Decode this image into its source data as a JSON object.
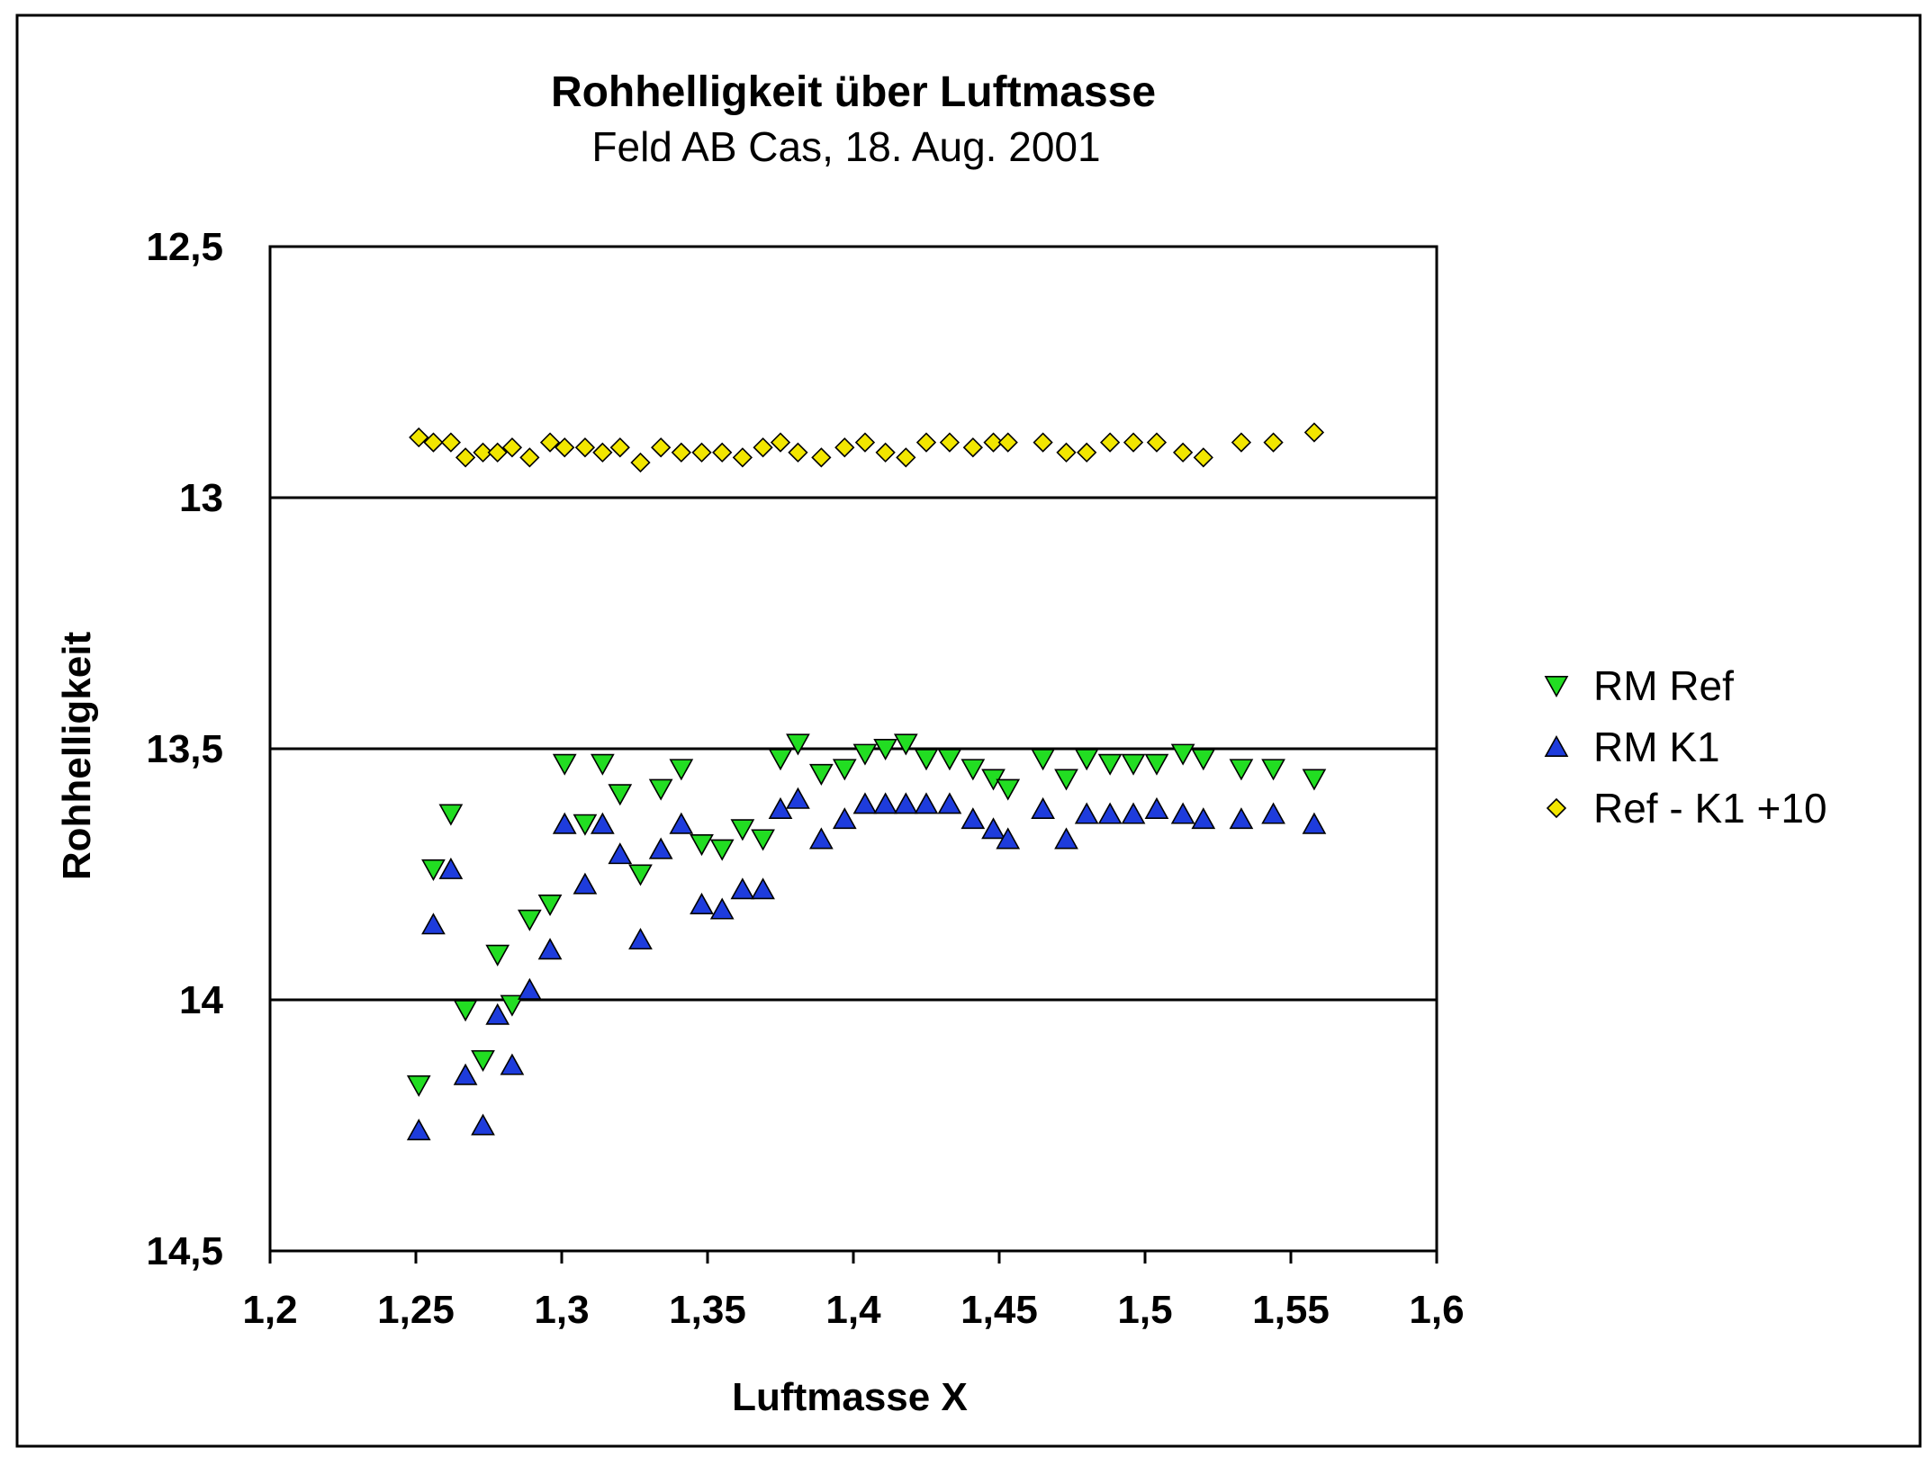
{
  "chart_data": {
    "type": "scatter",
    "title": "Rohhelligkeit über Luftmasse",
    "subtitle": "Feld AB Cas, 18. Aug. 2001",
    "xlabel": "Luftmasse X",
    "ylabel": "Rohhelligkeit",
    "xlim": [
      1.2,
      1.6
    ],
    "ylim": [
      12.5,
      14.5
    ],
    "y_reversed": true,
    "x_ticks": [
      "1,2",
      "1,25",
      "1,3",
      "1,35",
      "1,4",
      "1,45",
      "1,5",
      "1,55",
      "1,6"
    ],
    "x_tick_values": [
      1.2,
      1.25,
      1.3,
      1.35,
      1.4,
      1.45,
      1.5,
      1.55,
      1.6
    ],
    "y_ticks": [
      "12,5",
      "13",
      "13,5",
      "14",
      "14,5"
    ],
    "y_tick_values": [
      12.5,
      13.0,
      13.5,
      14.0,
      14.5
    ],
    "y_gridlines": [
      13.0,
      13.5,
      14.0
    ],
    "legend_position": "right",
    "series": [
      {
        "name": "RM Ref",
        "marker": "triangle-down",
        "color": "#22dd22",
        "points": [
          [
            1.251,
            14.17
          ],
          [
            1.256,
            13.74
          ],
          [
            1.262,
            13.63
          ],
          [
            1.267,
            14.02
          ],
          [
            1.273,
            14.12
          ],
          [
            1.278,
            13.91
          ],
          [
            1.283,
            14.01
          ],
          [
            1.289,
            13.84
          ],
          [
            1.296,
            13.81
          ],
          [
            1.301,
            13.53
          ],
          [
            1.308,
            13.65
          ],
          [
            1.314,
            13.53
          ],
          [
            1.32,
            13.59
          ],
          [
            1.327,
            13.75
          ],
          [
            1.334,
            13.58
          ],
          [
            1.341,
            13.54
          ],
          [
            1.348,
            13.69
          ],
          [
            1.355,
            13.7
          ],
          [
            1.362,
            13.66
          ],
          [
            1.369,
            13.68
          ],
          [
            1.375,
            13.52
          ],
          [
            1.381,
            13.49
          ],
          [
            1.389,
            13.55
          ],
          [
            1.397,
            13.54
          ],
          [
            1.404,
            13.51
          ],
          [
            1.411,
            13.5
          ],
          [
            1.418,
            13.49
          ],
          [
            1.425,
            13.52
          ],
          [
            1.433,
            13.52
          ],
          [
            1.441,
            13.54
          ],
          [
            1.448,
            13.56
          ],
          [
            1.453,
            13.58
          ],
          [
            1.465,
            13.52
          ],
          [
            1.473,
            13.56
          ],
          [
            1.48,
            13.52
          ],
          [
            1.488,
            13.53
          ],
          [
            1.496,
            13.53
          ],
          [
            1.504,
            13.53
          ],
          [
            1.513,
            13.51
          ],
          [
            1.52,
            13.52
          ],
          [
            1.533,
            13.54
          ],
          [
            1.544,
            13.54
          ],
          [
            1.558,
            13.56
          ]
        ]
      },
      {
        "name": "RM K1",
        "marker": "triangle-up",
        "color": "#1e3cdc",
        "points": [
          [
            1.251,
            14.26
          ],
          [
            1.256,
            13.85
          ],
          [
            1.262,
            13.74
          ],
          [
            1.267,
            14.15
          ],
          [
            1.273,
            14.25
          ],
          [
            1.278,
            14.03
          ],
          [
            1.283,
            14.13
          ],
          [
            1.289,
            13.98
          ],
          [
            1.296,
            13.9
          ],
          [
            1.301,
            13.65
          ],
          [
            1.308,
            13.77
          ],
          [
            1.314,
            13.65
          ],
          [
            1.32,
            13.71
          ],
          [
            1.327,
            13.88
          ],
          [
            1.334,
            13.7
          ],
          [
            1.341,
            13.65
          ],
          [
            1.348,
            13.81
          ],
          [
            1.355,
            13.82
          ],
          [
            1.362,
            13.78
          ],
          [
            1.369,
            13.78
          ],
          [
            1.375,
            13.62
          ],
          [
            1.381,
            13.6
          ],
          [
            1.389,
            13.68
          ],
          [
            1.397,
            13.64
          ],
          [
            1.404,
            13.61
          ],
          [
            1.411,
            13.61
          ],
          [
            1.418,
            13.61
          ],
          [
            1.425,
            13.61
          ],
          [
            1.433,
            13.61
          ],
          [
            1.441,
            13.64
          ],
          [
            1.448,
            13.66
          ],
          [
            1.453,
            13.68
          ],
          [
            1.465,
            13.62
          ],
          [
            1.473,
            13.68
          ],
          [
            1.48,
            13.63
          ],
          [
            1.488,
            13.63
          ],
          [
            1.496,
            13.63
          ],
          [
            1.504,
            13.62
          ],
          [
            1.513,
            13.63
          ],
          [
            1.52,
            13.64
          ],
          [
            1.533,
            13.64
          ],
          [
            1.544,
            13.63
          ],
          [
            1.558,
            13.65
          ]
        ]
      },
      {
        "name": "Ref - K1 +10",
        "marker": "diamond",
        "color": "#f2e600",
        "points": [
          [
            1.251,
            12.88
          ],
          [
            1.256,
            12.89
          ],
          [
            1.262,
            12.89
          ],
          [
            1.267,
            12.92
          ],
          [
            1.273,
            12.91
          ],
          [
            1.278,
            12.91
          ],
          [
            1.283,
            12.9
          ],
          [
            1.289,
            12.92
          ],
          [
            1.296,
            12.89
          ],
          [
            1.301,
            12.9
          ],
          [
            1.308,
            12.9
          ],
          [
            1.314,
            12.91
          ],
          [
            1.32,
            12.9
          ],
          [
            1.327,
            12.93
          ],
          [
            1.334,
            12.9
          ],
          [
            1.341,
            12.91
          ],
          [
            1.348,
            12.91
          ],
          [
            1.355,
            12.91
          ],
          [
            1.362,
            12.92
          ],
          [
            1.369,
            12.9
          ],
          [
            1.375,
            12.89
          ],
          [
            1.381,
            12.91
          ],
          [
            1.389,
            12.92
          ],
          [
            1.397,
            12.9
          ],
          [
            1.404,
            12.89
          ],
          [
            1.411,
            12.91
          ],
          [
            1.418,
            12.92
          ],
          [
            1.425,
            12.89
          ],
          [
            1.433,
            12.89
          ],
          [
            1.441,
            12.9
          ],
          [
            1.448,
            12.89
          ],
          [
            1.453,
            12.89
          ],
          [
            1.465,
            12.89
          ],
          [
            1.473,
            12.91
          ],
          [
            1.48,
            12.91
          ],
          [
            1.488,
            12.89
          ],
          [
            1.496,
            12.89
          ],
          [
            1.504,
            12.89
          ],
          [
            1.513,
            12.91
          ],
          [
            1.52,
            12.92
          ],
          [
            1.533,
            12.89
          ],
          [
            1.544,
            12.89
          ],
          [
            1.558,
            12.87
          ]
        ]
      }
    ]
  }
}
